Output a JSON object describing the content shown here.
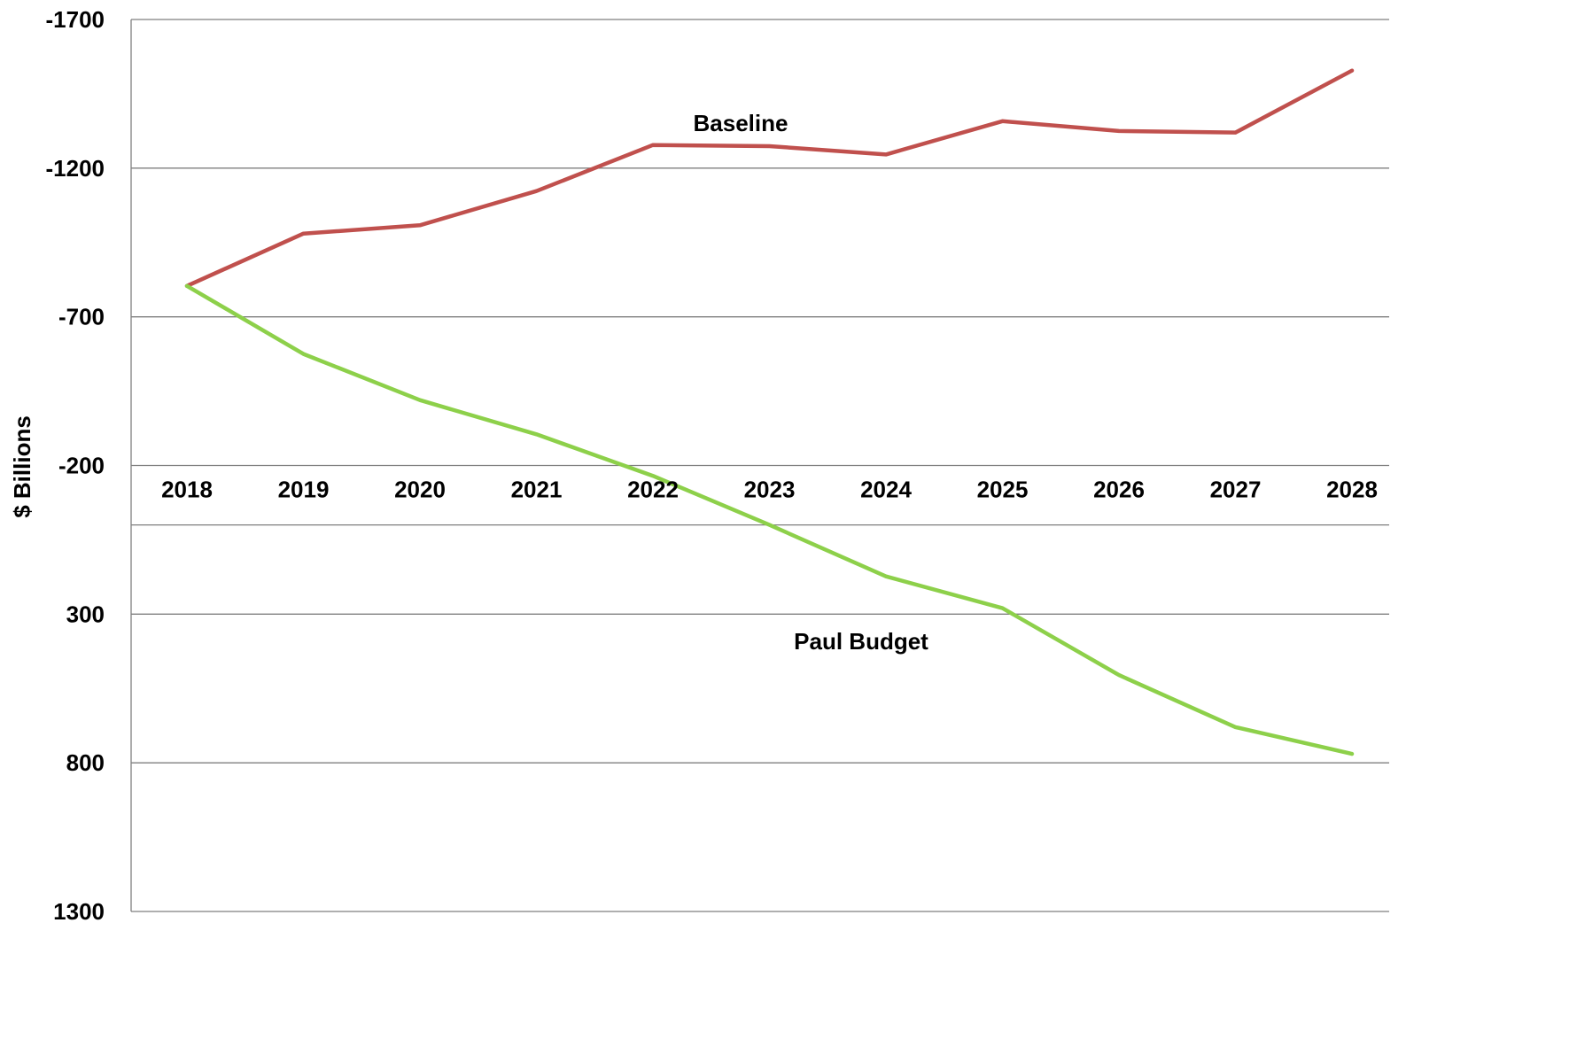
{
  "chart_data": {
    "type": "line",
    "ylabel": "$ Billions",
    "y_inverted": true,
    "ylim": [
      -1700,
      1300
    ],
    "yticks": [
      -1700,
      -1200,
      -700,
      -200,
      300,
      800,
      1300
    ],
    "xticks": [
      "2018",
      "2019",
      "2020",
      "2021",
      "2022",
      "2023",
      "2024",
      "2025",
      "2026",
      "2027",
      "2028"
    ],
    "categories": [
      2018,
      2019,
      2020,
      2021,
      2022,
      2023,
      2024,
      2025,
      2026,
      2027,
      2028
    ],
    "grid": true,
    "series": [
      {
        "name": "Baseline",
        "color": "#C0504D",
        "values": [
          -804,
          -980,
          -1008,
          -1123,
          -1278,
          -1274,
          -1246,
          -1358,
          -1325,
          -1320,
          -1528
        ]
      },
      {
        "name": "Paul Budget",
        "color": "#8DD04A",
        "values": [
          -804,
          -575,
          -420,
          -305,
          -165,
          0,
          173,
          280,
          505,
          680,
          770
        ]
      }
    ]
  }
}
